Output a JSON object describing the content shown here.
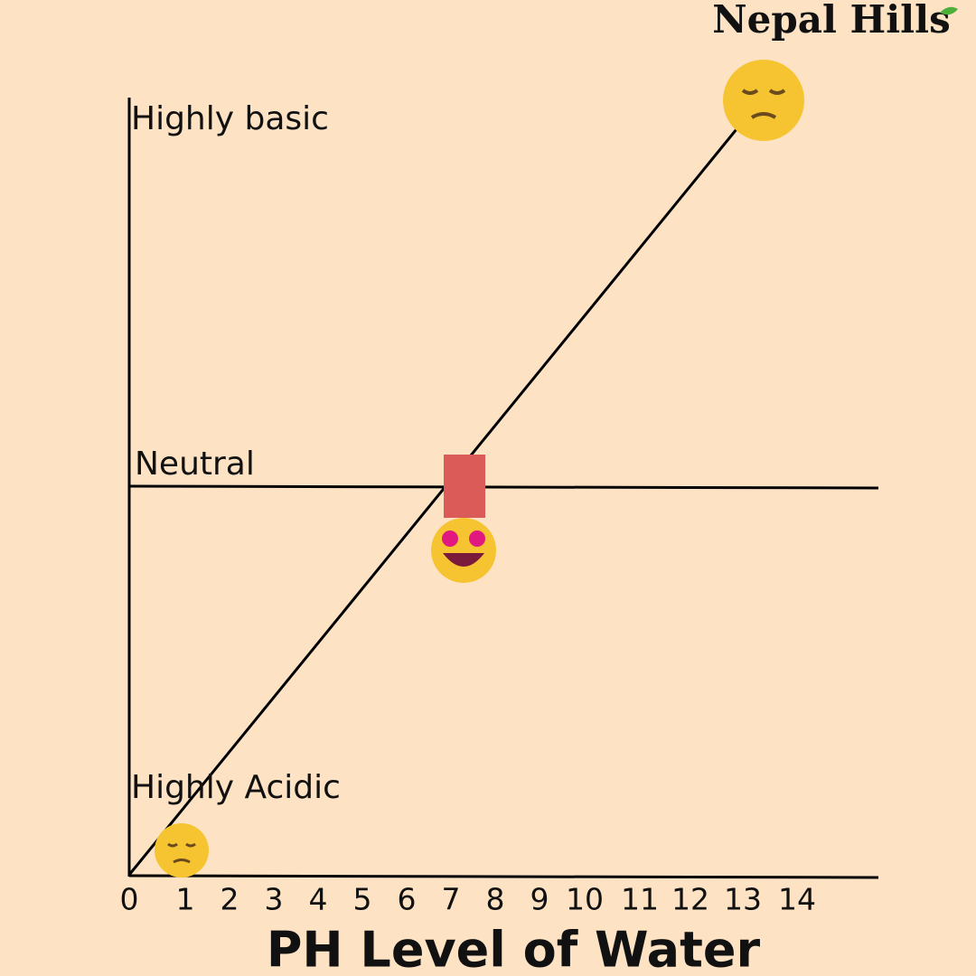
{
  "brand": "Nepal Hills",
  "levels": {
    "basic": "Highly basic",
    "neutral": "Neutral",
    "acidic": "Highly Acidic"
  },
  "x_axis": {
    "ticks": [
      0,
      1,
      2,
      3,
      4,
      5,
      6,
      7,
      8,
      9,
      10,
      11,
      12,
      13,
      14
    ],
    "title": "PH Level of Water"
  }
}
